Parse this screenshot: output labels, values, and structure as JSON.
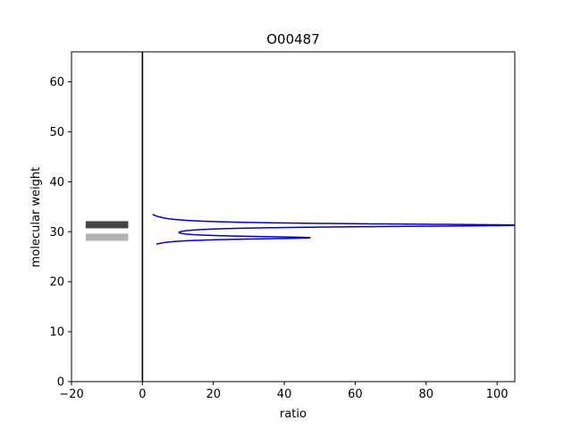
{
  "chart_data": {
    "type": "line",
    "title": "O00487",
    "xlabel": "ratio",
    "ylabel": "molecular weight",
    "xlim": [
      -20,
      105
    ],
    "ylim": [
      0,
      66
    ],
    "xticks": [
      -20,
      0,
      20,
      40,
      60,
      80,
      100
    ],
    "xtick_labels": [
      "−20",
      "0",
      "20",
      "40",
      "60",
      "80",
      "100"
    ],
    "yticks": [
      0,
      10,
      20,
      30,
      40,
      50,
      60
    ],
    "ytick_labels": [
      "0",
      "10",
      "20",
      "30",
      "40",
      "50",
      "60"
    ],
    "grid": false,
    "legend": "none",
    "bands": [
      {
        "x_range": [
          -16,
          -4
        ],
        "y": 31.4,
        "color": "#444444"
      },
      {
        "x_range": [
          -16,
          -4
        ],
        "y": 28.9,
        "color": "#b3b3b3"
      }
    ],
    "reference_line": {
      "x": 0,
      "color": "#000000"
    },
    "series": [
      {
        "color": "#0000cc",
        "peaks": [
          {
            "center": 31.3,
            "height": 105,
            "width": 0.35
          },
          {
            "center": 28.8,
            "height": 45.2,
            "width": 0.35
          }
        ],
        "y_range": [
          27.5,
          33.5
        ]
      }
    ]
  }
}
